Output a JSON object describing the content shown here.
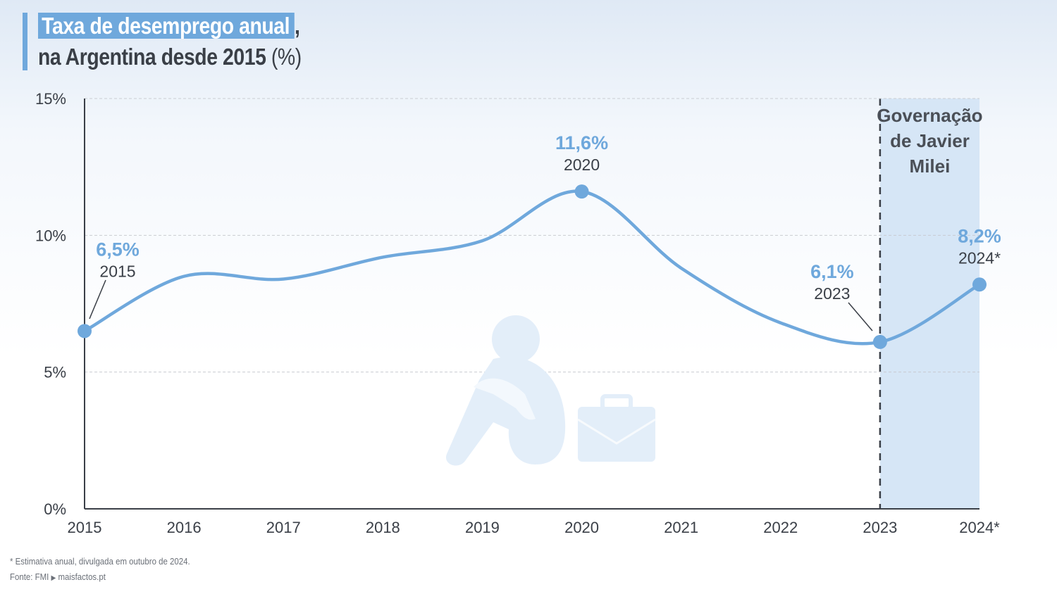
{
  "title": {
    "highlighted": "Taxa de desemprego anual",
    "comma": ",",
    "line2": "na Argentina desde 2015",
    "unit": "(%)"
  },
  "chart_data": {
    "type": "line",
    "x": [
      "2015",
      "2016",
      "2017",
      "2018",
      "2019",
      "2020",
      "2021",
      "2022",
      "2023",
      "2024*"
    ],
    "series": [
      {
        "values": [
          6.5,
          8.5,
          8.4,
          9.2,
          9.8,
          11.6,
          8.8,
          6.8,
          6.1,
          8.2
        ]
      }
    ],
    "ylim": [
      0,
      15
    ],
    "yticks": [
      0,
      5,
      10,
      15
    ],
    "ytick_labels": [
      "0%",
      "5%",
      "10%",
      "15%"
    ],
    "grid": true,
    "color": "#6fa8dc",
    "highlight_points": [
      {
        "index": 0,
        "value_label": "6,5%",
        "year_label": "2015"
      },
      {
        "index": 5,
        "value_label": "11,6%",
        "year_label": "2020"
      },
      {
        "index": 8,
        "value_label": "6,1%",
        "year_label": "2023"
      },
      {
        "index": 9,
        "value_label": "8,2%",
        "year_label": "2024*"
      }
    ],
    "shaded_region": {
      "from_index": 8,
      "to_index": 9,
      "label_lines": [
        "Governação",
        "de Javier",
        "Milei"
      ]
    }
  },
  "illustration": {
    "icon": "sad-person-with-briefcase-icon"
  },
  "footnote": "* Estimativa anual, divulgada em outubro de 2024.",
  "source": {
    "prefix": "Fonte: FMI",
    "arrow": "▶",
    "site": "maisfactos.pt"
  }
}
